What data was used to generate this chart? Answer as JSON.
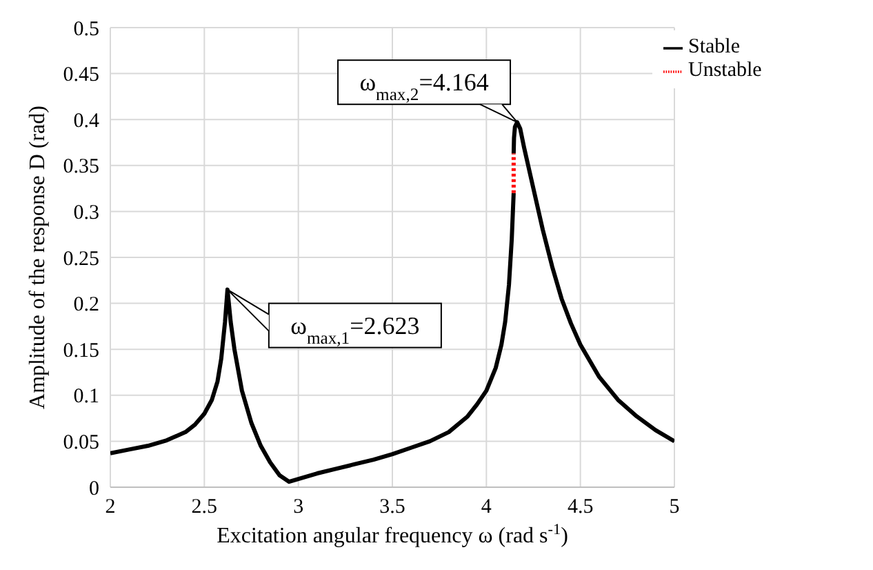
{
  "chart_data": {
    "type": "line",
    "xlabel": "Excitation angular frequency ω (rad s$^{-1}$)",
    "ylabel": "Amplitude of the response D (rad)",
    "xlim": [
      2,
      5
    ],
    "xticks": [
      2,
      2.5,
      3,
      3.5,
      4,
      4.5,
      5
    ],
    "ylim": [
      0,
      0.5
    ],
    "yticks": [
      0,
      0.05,
      0.1,
      0.15,
      0.2,
      0.25,
      0.3,
      0.35,
      0.4,
      0.45,
      0.5
    ],
    "grid": true,
    "legend": "top right",
    "marker": "none",
    "series": [
      {
        "name": "Stable",
        "color": "#000000",
        "line_style": "solid",
        "x": [
          2,
          2.1,
          2.2,
          2.3,
          2.4,
          2.45,
          2.5,
          2.54,
          2.57,
          2.59,
          2.61,
          2.623,
          2.64,
          2.66,
          2.7,
          2.75,
          2.8,
          2.85,
          2.9,
          2.95,
          3,
          3.1,
          3.2,
          3.3,
          3.4,
          3.5,
          3.6,
          3.7,
          3.8,
          3.9,
          3.95,
          4,
          4.05,
          4.08,
          4.1,
          4.12,
          4.135,
          4.145
        ],
        "values": [
          0.037,
          0.041,
          0.045,
          0.051,
          0.06,
          0.068,
          0.08,
          0.095,
          0.115,
          0.14,
          0.18,
          0.215,
          0.18,
          0.15,
          0.105,
          0.07,
          0.045,
          0.027,
          0.013,
          0.006,
          0.009,
          0.015,
          0.02,
          0.025,
          0.03,
          0.036,
          0.043,
          0.05,
          0.06,
          0.077,
          0.09,
          0.105,
          0.13,
          0.155,
          0.18,
          0.22,
          0.27,
          0.32
        ]
      },
      {
        "color": "#000000",
        "line_style": "solid",
        "x": [
          4.145,
          4.147,
          4.152,
          4.164,
          4.18,
          4.2,
          4.25,
          4.3,
          4.35,
          4.4,
          4.45,
          4.5,
          4.6,
          4.7,
          4.8,
          4.9,
          5
        ],
        "values": [
          0.363,
          0.38,
          0.392,
          0.397,
          0.39,
          0.37,
          0.325,
          0.28,
          0.24,
          0.205,
          0.178,
          0.155,
          0.12,
          0.095,
          0.077,
          0.062,
          0.05
        ]
      },
      {
        "name": "Unstable",
        "color": "#ff0000",
        "line_style": "dotted",
        "x": [
          4.145,
          4.145
        ],
        "values": [
          0.32,
          0.363
        ]
      }
    ],
    "annotations": [
      {
        "text": "ω$_{max,2}$=4.164",
        "x": 4.164,
        "y": 0.397
      },
      {
        "text": "ω$_{max,1}$=2.623",
        "x": 2.623,
        "y": 0.215
      }
    ]
  }
}
